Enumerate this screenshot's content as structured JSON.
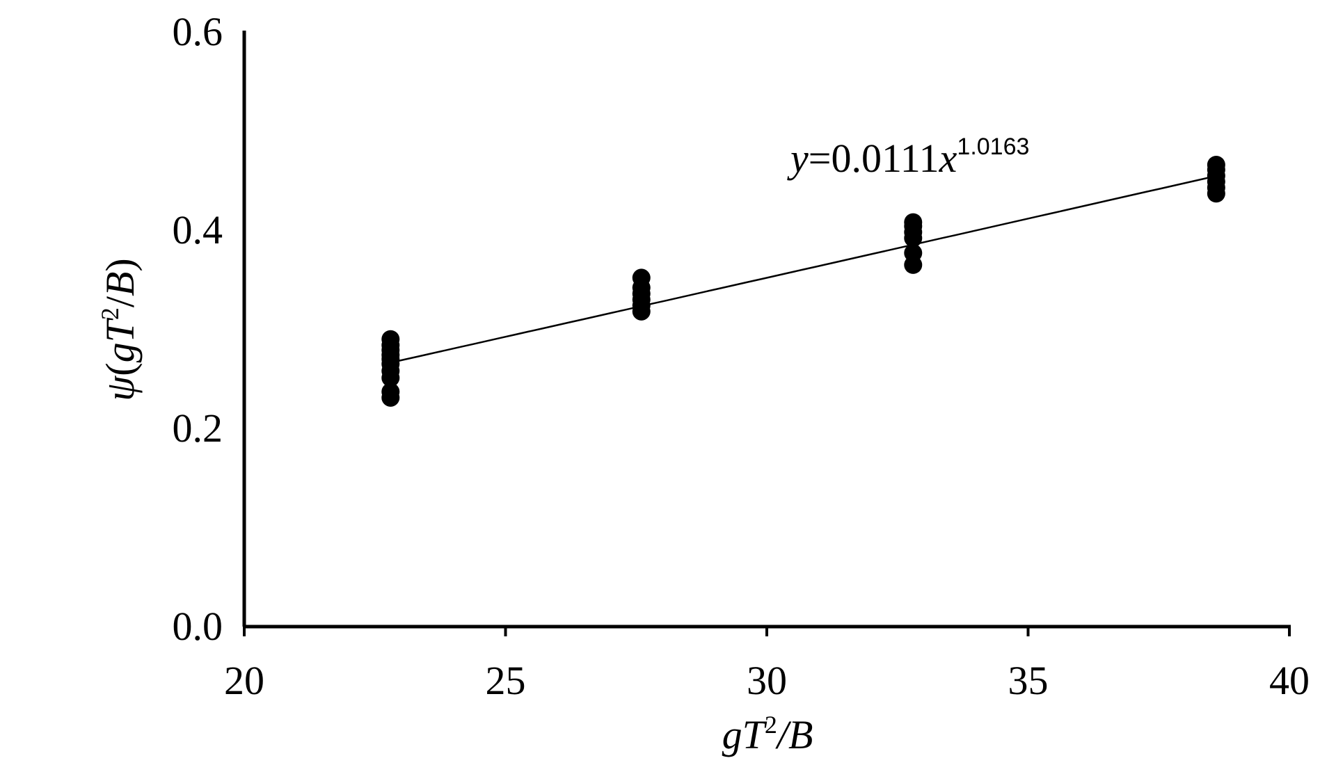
{
  "chart_data": {
    "type": "scatter",
    "xlabel": {
      "g": "g",
      "T": "T",
      "exp": "2",
      "rest": "/B"
    },
    "ylabel": {
      "psi": "ψ",
      "open": "(",
      "g": "g",
      "T": "T",
      "exp": "2",
      "slash": "/",
      "B": "B",
      "close": ")"
    },
    "xlim": [
      20,
      40
    ],
    "ylim": [
      0.0,
      0.6
    ],
    "xticks": [
      20,
      25,
      30,
      35,
      40
    ],
    "xtick_labels": [
      "20",
      "25",
      "30",
      "35",
      "40"
    ],
    "yticks": [
      0.0,
      0.2,
      0.4,
      0.6
    ],
    "ytick_labels": [
      "0.0",
      "0.2",
      "0.4",
      "0.6"
    ],
    "grid": false,
    "series": [
      {
        "points": [
          [
            22.8,
            0.231
          ],
          [
            22.8,
            0.237
          ],
          [
            22.8,
            0.251
          ],
          [
            22.8,
            0.258
          ],
          [
            22.8,
            0.265
          ],
          [
            22.8,
            0.27
          ],
          [
            22.8,
            0.274
          ],
          [
            22.8,
            0.279
          ],
          [
            22.8,
            0.284
          ],
          [
            22.8,
            0.29
          ],
          [
            27.6,
            0.318
          ],
          [
            27.6,
            0.324
          ],
          [
            27.6,
            0.33
          ],
          [
            27.6,
            0.336
          ],
          [
            27.6,
            0.342
          ],
          [
            27.6,
            0.352
          ],
          [
            32.8,
            0.365
          ],
          [
            32.8,
            0.377
          ],
          [
            32.8,
            0.392
          ],
          [
            32.8,
            0.398
          ],
          [
            32.8,
            0.404
          ],
          [
            32.8,
            0.408
          ],
          [
            38.6,
            0.437
          ],
          [
            38.6,
            0.443
          ],
          [
            38.6,
            0.449
          ],
          [
            38.6,
            0.455
          ],
          [
            38.6,
            0.461
          ],
          [
            38.6,
            0.466
          ]
        ],
        "color": "#000000"
      }
    ],
    "fit": {
      "type": "power",
      "a": 0.0111,
      "b": 1.0163,
      "x_range": [
        22.8,
        38.6
      ],
      "color": "#000000"
    },
    "equation": {
      "y": "y",
      "eq": "=0.0111",
      "x": "x",
      "exp": "1.0163"
    }
  }
}
